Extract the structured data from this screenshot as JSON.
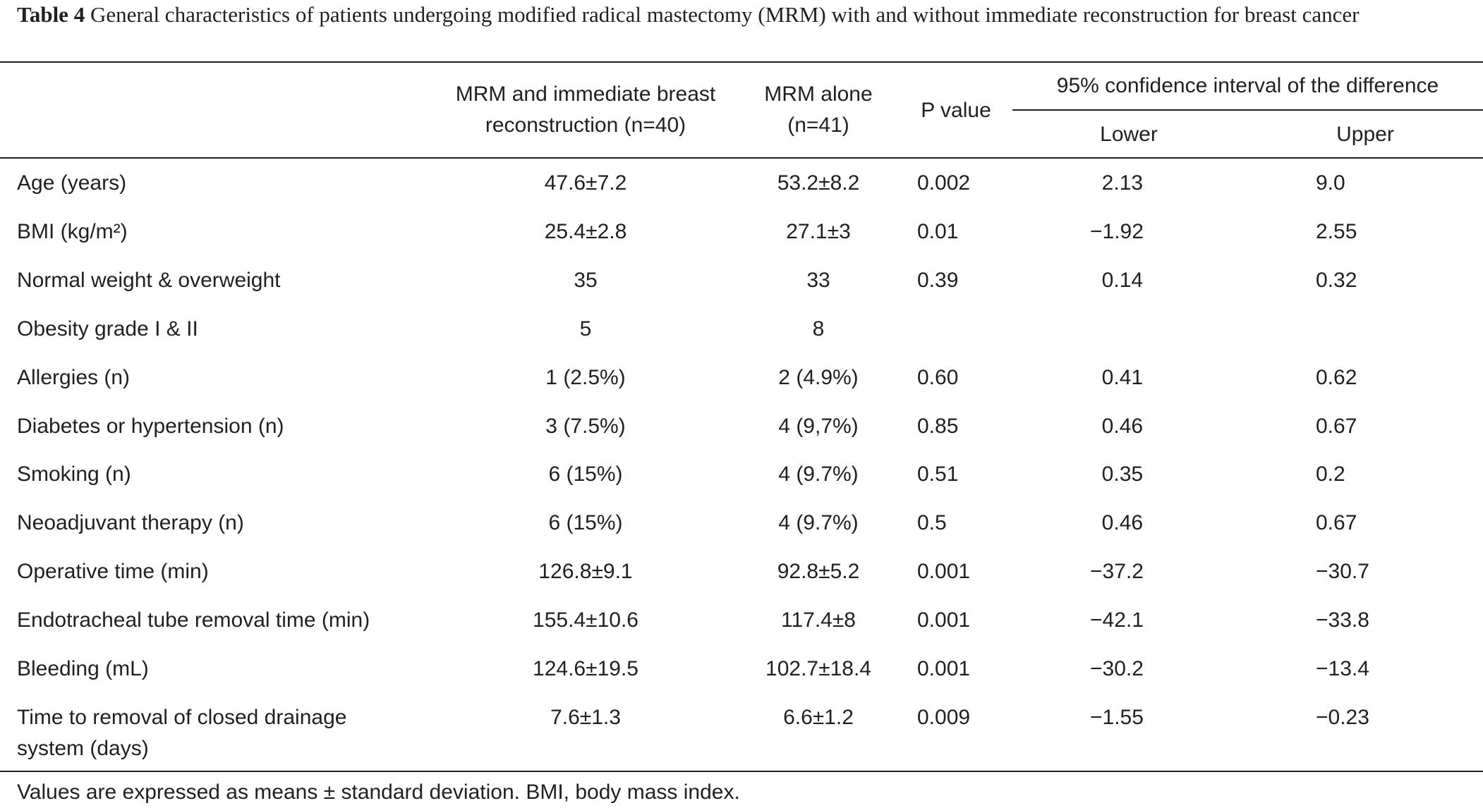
{
  "caption": {
    "label": "Table 4",
    "text": "General characteristics of patients undergoing modified radical mastectomy (MRM) with and without immediate reconstruction for breast cancer"
  },
  "header": {
    "col1_line1": "MRM and immediate breast",
    "col1_line2": "reconstruction (n=40)",
    "col2_line1": "MRM alone",
    "col2_line2": "(n=41)",
    "col3": "P value",
    "ci_group": "95% confidence interval of the difference",
    "col4": "Lower",
    "col5": "Upper"
  },
  "rows": [
    {
      "label": "Age (years)",
      "mrm_recon": "47.6±7.2",
      "mrm_alone": "53.2±8.2",
      "p": "0.002",
      "lower": "  2.13",
      "upper": "9.0"
    },
    {
      "label": "BMI (kg/m²)",
      "mrm_recon": "25.4±2.8",
      "mrm_alone": "27.1±3",
      "p": "0.01",
      "lower": "−1.92",
      "upper": "2.55"
    },
    {
      "label": "Normal weight & overweight",
      "mrm_recon": "35",
      "mrm_alone": "33",
      "p": "0.39",
      "lower": "  0.14",
      "upper": "0.32"
    },
    {
      "label": "Obesity grade I & II",
      "mrm_recon": "5",
      "mrm_alone": "8",
      "p": "",
      "lower": "",
      "upper": ""
    },
    {
      "label": "Allergies (n)",
      "mrm_recon": "1 (2.5%)",
      "mrm_alone": "2 (4.9%)",
      "p": "0.60",
      "lower": "  0.41",
      "upper": "0.62"
    },
    {
      "label": "Diabetes or hypertension (n)",
      "mrm_recon": "3 (7.5%)",
      "mrm_alone": "4 (9,7%)",
      "p": "0.85",
      "lower": "  0.46",
      "upper": "0.67"
    },
    {
      "label": "Smoking (n)",
      "mrm_recon": "6 (15%)",
      "mrm_alone": "4 (9.7%)",
      "p": "0.51",
      "lower": "  0.35",
      "upper": "0.2"
    },
    {
      "label": "Neoadjuvant therapy (n)",
      "mrm_recon": "6 (15%)",
      "mrm_alone": "4 (9.7%)",
      "p": "0.5",
      "lower": "  0.46",
      "upper": "0.67"
    },
    {
      "label": "Operative time (min)",
      "mrm_recon": "126.8±9.1",
      "mrm_alone": "92.8±5.2",
      "p": "0.001",
      "lower": "−37.2",
      "upper": "−30.7"
    },
    {
      "label": "Endotracheal tube removal time (min)",
      "mrm_recon": "155.4±10.6",
      "mrm_alone": "117.4±8",
      "p": "0.001",
      "lower": "−42.1",
      "upper": "−33.8"
    },
    {
      "label": "Bleeding (mL)",
      "mrm_recon": "124.6±19.5",
      "mrm_alone": "102.7±18.4",
      "p": "0.001",
      "lower": "−30.2",
      "upper": "−13.4"
    },
    {
      "label": "Time to removal of closed drainage",
      "label_line2": "system (days)",
      "mrm_recon": "7.6±1.3",
      "mrm_alone": "6.6±1.2",
      "p": "0.009",
      "lower": "−1.55",
      "upper": "−0.23"
    }
  ],
  "footnote": "Values are expressed as means ± standard deviation. BMI, body mass index."
}
